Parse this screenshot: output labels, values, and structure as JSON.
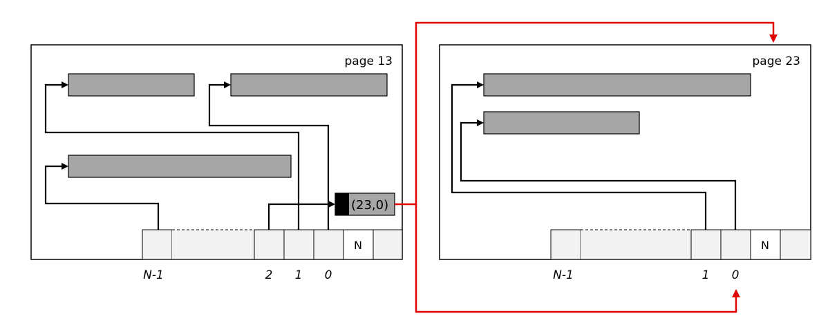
{
  "page13": {
    "title": "page 13",
    "slot_indexes": {
      "n_minus_1": "N-1",
      "two": "2",
      "one": "1",
      "zero": "0"
    },
    "slot_n_label": "N",
    "forward_pointer": "(23,0)"
  },
  "page23": {
    "title": "page 23",
    "slot_indexes": {
      "n_minus_1": "N-1",
      "one": "1",
      "zero": "0"
    },
    "slot_n_label": "N"
  },
  "colors": {
    "record_fill": "#a6a6a6",
    "slot_fill": "#f2f2f2",
    "forward_link": "#e00000",
    "forward_marker": "#000000"
  }
}
